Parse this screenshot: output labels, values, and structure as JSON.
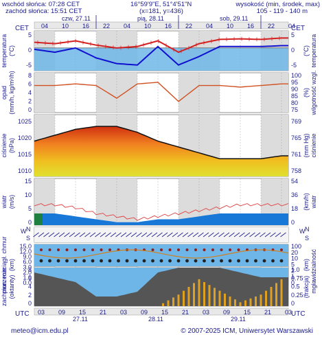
{
  "header": {
    "sunrise": "wschód słońca: 07:28 CET",
    "sunset": "zachód słońca: 15:51 CET",
    "coords": "16°59'9\"E, 51°4'51\"N",
    "grid": "(x=181, y=436)",
    "altitude_title": "wysokość (min, środek, max)",
    "altitude_values": "105 - 119 - 140 m"
  },
  "timezone_top": "CET",
  "timezone_bottom": "UTC",
  "day_labels_top": [
    "czw, 27.11",
    "pią, 28.11",
    "sob, 29.11"
  ],
  "hours_top": [
    "04",
    "10",
    "16",
    "22",
    "04",
    "10",
    "16",
    "22",
    "04",
    "10",
    "16",
    "22",
    "04"
  ],
  "hours_bottom": [
    "03",
    "09",
    "15",
    "21",
    "03",
    "09",
    "15",
    "21",
    "03",
    "09",
    "15",
    "21",
    "03"
  ],
  "dates_bottom": [
    "27.11",
    "28.11",
    "29.11"
  ],
  "panels": {
    "temperature": {
      "left_label": "temperatura",
      "left_unit": "(°C)",
      "right_label": "temperatura",
      "right_unit": "(°C)",
      "ticks": [
        "5",
        "0",
        "-5"
      ]
    },
    "precip": {
      "left_label": "opad",
      "left_unit": "(mm/h, kg/m²/h)",
      "right_label": "wilgotność wzgl.",
      "right_unit": "(%)",
      "left_ticks": [
        "8",
        "6",
        "4",
        "2",
        "0"
      ],
      "right_ticks": [
        "100",
        "95",
        "90",
        "85",
        "80",
        "75"
      ]
    },
    "pressure": {
      "left_label": "ciśnienie",
      "left_unit": "(hPa)",
      "right_label": "ciśnienie",
      "right_unit": "(mm Hg)",
      "left_ticks": [
        "1025",
        "1020",
        "1015",
        "1010"
      ],
      "right_ticks": [
        "769",
        "765",
        "761",
        "758"
      ]
    },
    "wind": {
      "left_label": "wiatr",
      "left_unit": "(m/s)",
      "right_label": "wiatr",
      "right_unit": "(km/h)",
      "left_ticks": [
        "15",
        "10",
        "5",
        "0"
      ],
      "right_ticks": [
        "54",
        "36",
        "18",
        "0"
      ]
    },
    "wind_dir": {
      "left_letters": [
        "W",
        "N",
        "S"
      ],
      "right_letters": [
        "W",
        "N",
        "S"
      ]
    },
    "clouds": {
      "left_label": "pion. rozciągł. chmur",
      "left_unit": "(km)",
      "right_label": "widzialność",
      "right_unit": "(km)",
      "left_ticks": [
        "15.0",
        "12.0",
        "9.0",
        "6.0",
        "3.0",
        "2.0",
        "1.0",
        "0.0"
      ],
      "right_ticks": [
        "100",
        "20",
        "10",
        "5",
        "2",
        "1",
        "0"
      ]
    },
    "cover": {
      "left_label": "zachmurzenie",
      "left_unit": "(oktanty)",
      "right_label": "mgła",
      "right_unit": "(frakcja)",
      "left_ticks": [
        "8",
        "6",
        "4",
        "2",
        "0"
      ],
      "right_ticks": [
        "1.0",
        "0.75",
        "0.5",
        "0.25",
        "0"
      ]
    }
  },
  "footer": {
    "left": "meteo@icm.edu.pl",
    "right": "© 2007-2025 ICM, Uniwersytet Warszawski"
  },
  "colors": {
    "temp_line": "#d42020",
    "dew_line": "#1010d0",
    "rh_line": "#d05020",
    "pressure_line": "#101010",
    "wind_line": "#e04040",
    "fog_bars": "#e0a020",
    "sky": "#6fb6e8"
  },
  "chart_data": {
    "type": "line",
    "x_hours": [
      0,
      6,
      12,
      18,
      24,
      30,
      36,
      42,
      48,
      54,
      60,
      66,
      72
    ],
    "temperature": {
      "series": [
        {
          "values": [
            2.0,
            1.5,
            2.5,
            1.0,
            0.0,
            0.5,
            2.5,
            -1.5,
            1.5,
            3.0,
            3.2,
            3.0,
            3.5
          ]
        },
        {
          "values": [
            -0.5,
            -1.5,
            0.0,
            -3.5,
            -5.5,
            -6.0,
            0.5,
            -6.0,
            -3.0,
            0.5,
            0.5,
            0.5,
            0.8
          ]
        }
      ],
      "ylim": [
        -8,
        6
      ]
    },
    "humidity": {
      "values": [
        92,
        92,
        93,
        92,
        84,
        93,
        94,
        82,
        92,
        92,
        91,
        92,
        93
      ],
      "ylim": [
        75,
        100
      ]
    },
    "pressure": {
      "values": [
        1019,
        1021,
        1023,
        1024,
        1024,
        1022,
        1019,
        1017,
        1015,
        1013,
        1013,
        1013,
        1014
      ],
      "ylim": [
        1007,
        1028
      ]
    },
    "wind": {
      "values": [
        7,
        7,
        6,
        4,
        3,
        2,
        3,
        4,
        5,
        6,
        7,
        7,
        7
      ],
      "mean": [
        4,
        4,
        3,
        2,
        1,
        1,
        2,
        2,
        3,
        4,
        4,
        4,
        4
      ],
      "ylim": [
        0,
        16
      ]
    },
    "cloud_cover": {
      "values": [
        7,
        6,
        5,
        2,
        2,
        3,
        7,
        8,
        8,
        8,
        7,
        6,
        6
      ],
      "ylim": [
        0,
        8
      ]
    },
    "fog": {
      "values": [
        0,
        0,
        0,
        0,
        0,
        0,
        0,
        0.3,
        0.7,
        0.4,
        0.1,
        0.3,
        0.7
      ],
      "ylim": [
        0,
        1
      ]
    }
  }
}
